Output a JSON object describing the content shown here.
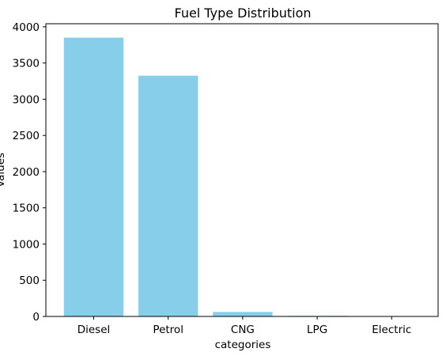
{
  "chart_data": {
    "type": "bar",
    "title": "Fuel Type Distribution",
    "xlabel": "categories",
    "ylabel": "Values",
    "categories": [
      "Diesel",
      "Petrol",
      "CNG",
      "LPG",
      "Electric"
    ],
    "values": [
      3850,
      3325,
      62,
      8,
      2
    ],
    "ylim": [
      0,
      4042.5
    ],
    "yticks": [
      0,
      500,
      1000,
      1500,
      2000,
      2500,
      3000,
      3500,
      4000
    ],
    "grid": false,
    "bar_color": "#87CEEB"
  }
}
